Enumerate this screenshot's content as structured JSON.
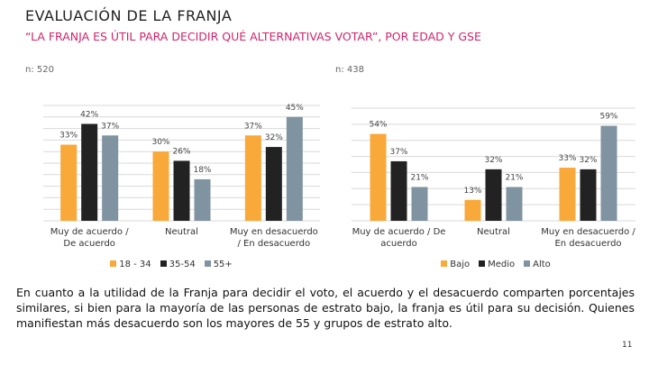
{
  "header": {
    "title": "EVALUACIÓN DE LA FRANJA",
    "subtitle": "“LA FRANJA ES ÚTIL PARA DECIDIR QUÉ ALTERNATIVAS VOTAR”, POR EDAD Y GSE"
  },
  "chart_data": [
    {
      "type": "bar",
      "subtitle": "n: 520",
      "categories": [
        "Muy de acuerdo / De acuerdo",
        "Neutral",
        "Muy en desacuerdo / En desacuerdo"
      ],
      "series": [
        {
          "name": "18 - 34",
          "color": "#f9a83a",
          "values": [
            33,
            30,
            37
          ],
          "value_labels": [
            "33%",
            "30%",
            "37%"
          ]
        },
        {
          "name": "35-54",
          "color": "#222222",
          "values": [
            42,
            26,
            32
          ],
          "value_labels": [
            "42%",
            "26%",
            "32%"
          ]
        },
        {
          "name": "55+",
          "color": "#7f93a0",
          "values": [
            37,
            18,
            45
          ],
          "value_labels": [
            "37%",
            "18%",
            "45%"
          ]
        }
      ],
      "ylim": [
        0,
        50
      ],
      "yticks": [
        0,
        5,
        10,
        15,
        20,
        25,
        30,
        35,
        40,
        45,
        50
      ],
      "tick_labels": false,
      "grid": true,
      "legend": "bottom"
    },
    {
      "type": "bar",
      "subtitle": "n: 438",
      "categories": [
        "Muy de acuerdo / De acuerdo",
        "Neutral",
        "Muy en desacuerdo / En desacuerdo"
      ],
      "series": [
        {
          "name": "Bajo",
          "color": "#f9a83a",
          "values": [
            54,
            13,
            33
          ],
          "value_labels": [
            "54%",
            "13%",
            "33%"
          ]
        },
        {
          "name": "Medio",
          "color": "#222222",
          "values": [
            37,
            32,
            32
          ],
          "value_labels": [
            "37%",
            "32%",
            "32%"
          ]
        },
        {
          "name": "Alto",
          "color": "#7f93a0",
          "values": [
            21,
            21,
            59
          ],
          "value_labels": [
            "21%",
            "21%",
            "59%"
          ]
        }
      ],
      "ylim": [
        0,
        70
      ],
      "yticks": [
        0,
        10,
        20,
        30,
        40,
        50,
        60,
        70
      ],
      "tick_labels": false,
      "grid": true,
      "legend": "bottom"
    }
  ],
  "body": "En cuanto a la utilidad de la Franja para decidir el voto, el acuerdo y el desacuerdo comparten porcentajes similares, si bien para la mayoría de las personas de estrato bajo, la franja es útil para su decisión. Quienes manifiestan más desacuerdo son los mayores de 55 y grupos de estrato alto.",
  "page_number": "11"
}
